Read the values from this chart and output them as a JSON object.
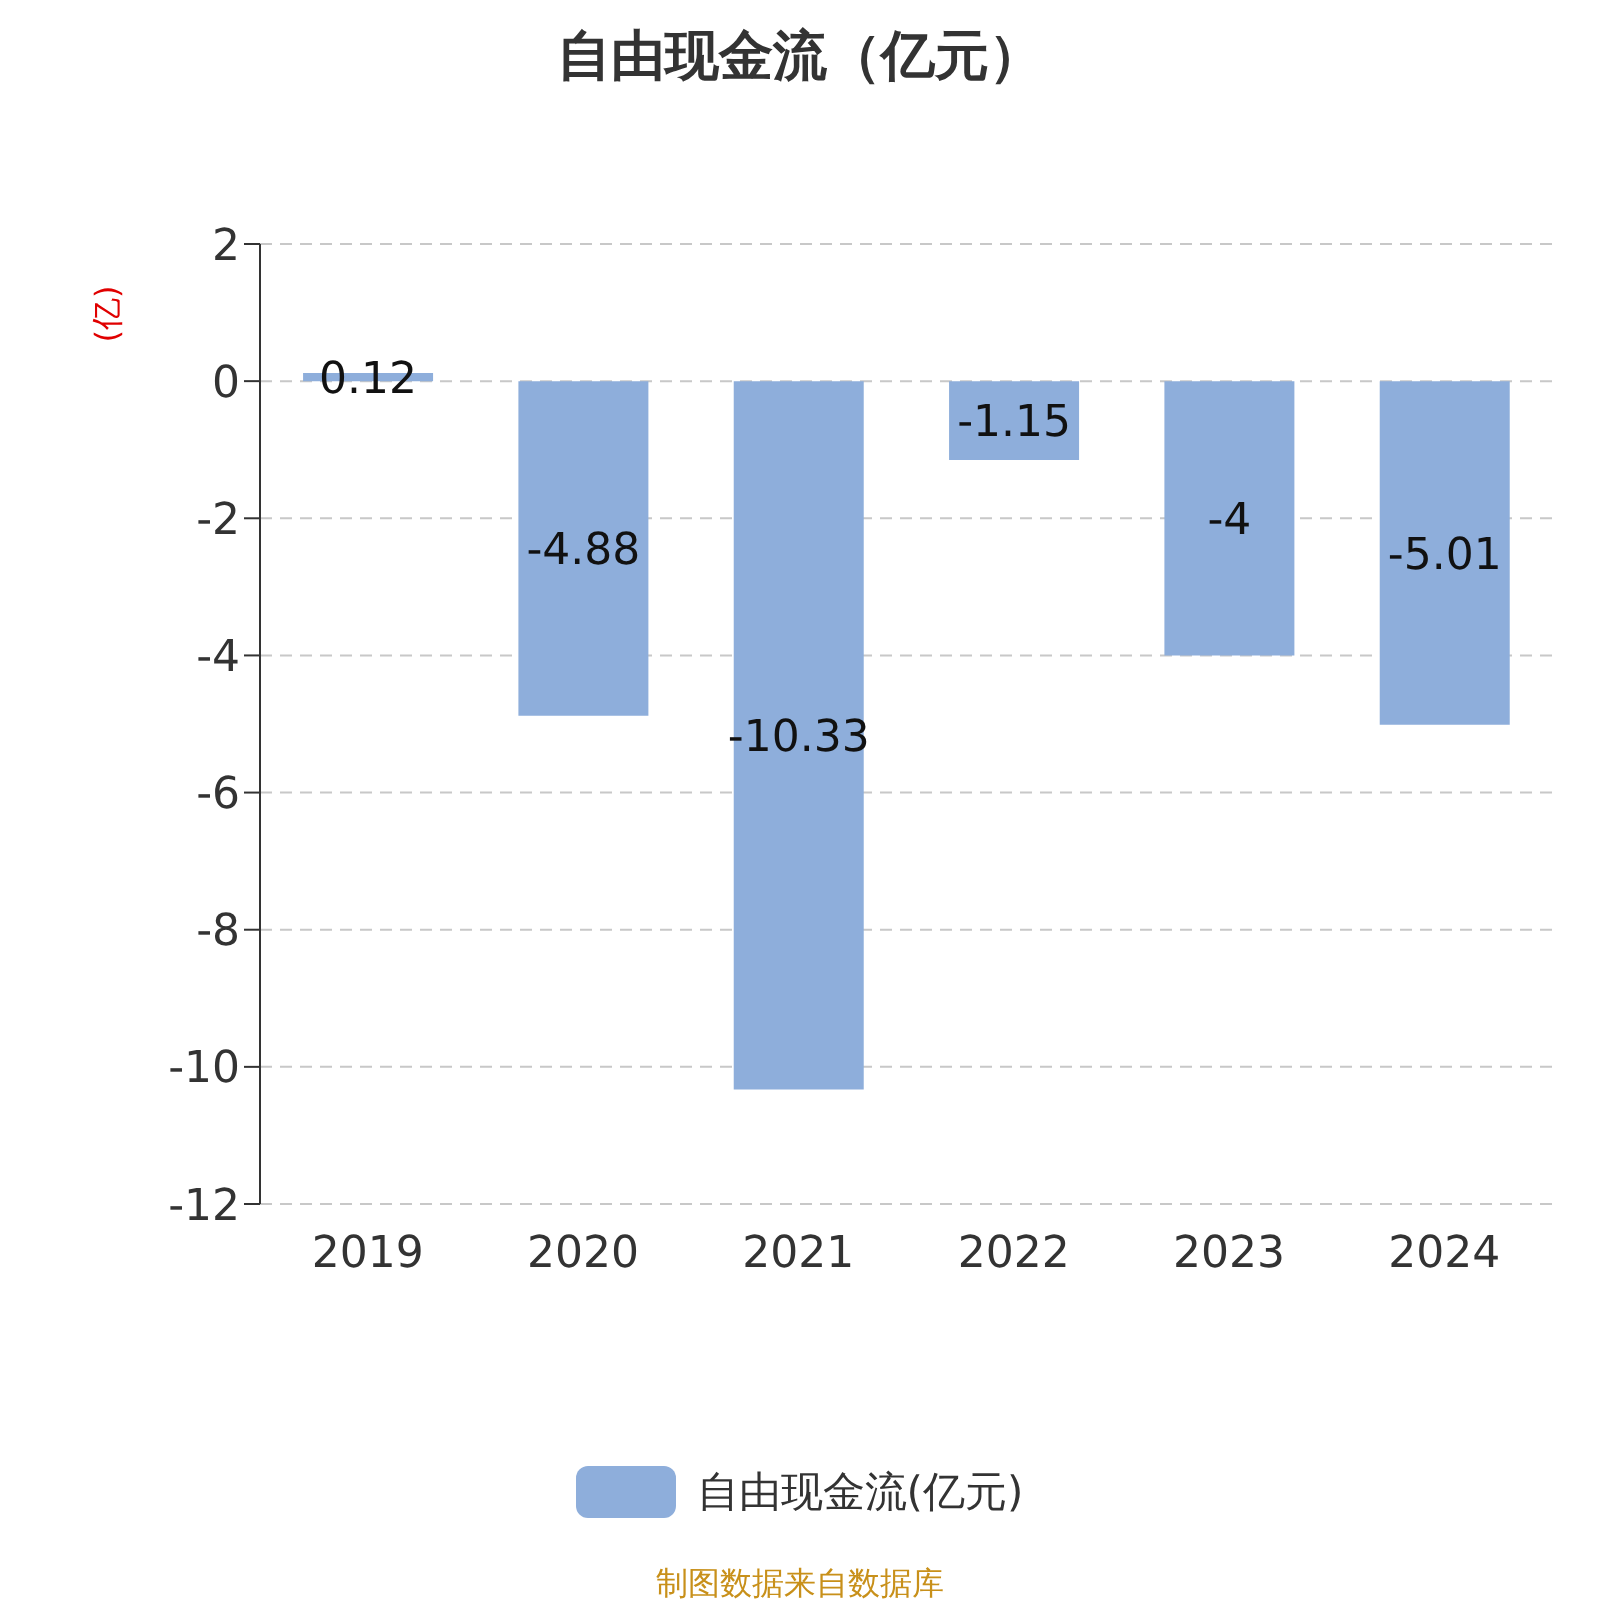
{
  "chart_data": {
    "type": "bar",
    "title": "自由现金流（亿元）",
    "ylabel": "(亿)",
    "categories": [
      "2019",
      "2020",
      "2021",
      "2022",
      "2023",
      "2024"
    ],
    "series": [
      {
        "name": "自由现金流(亿元)",
        "color": "#8eaedb",
        "values": [
          0.12,
          -4.88,
          -10.33,
          -1.15,
          -4,
          -5.01
        ]
      }
    ],
    "ylim": [
      -12,
      2
    ],
    "yticks": [
      -12,
      -10,
      -8,
      -6,
      -4,
      -2,
      0,
      2
    ],
    "grid": "y",
    "legend": "bottom",
    "data_labels": true,
    "annotations": [
      "制图数据来自数据库"
    ]
  }
}
